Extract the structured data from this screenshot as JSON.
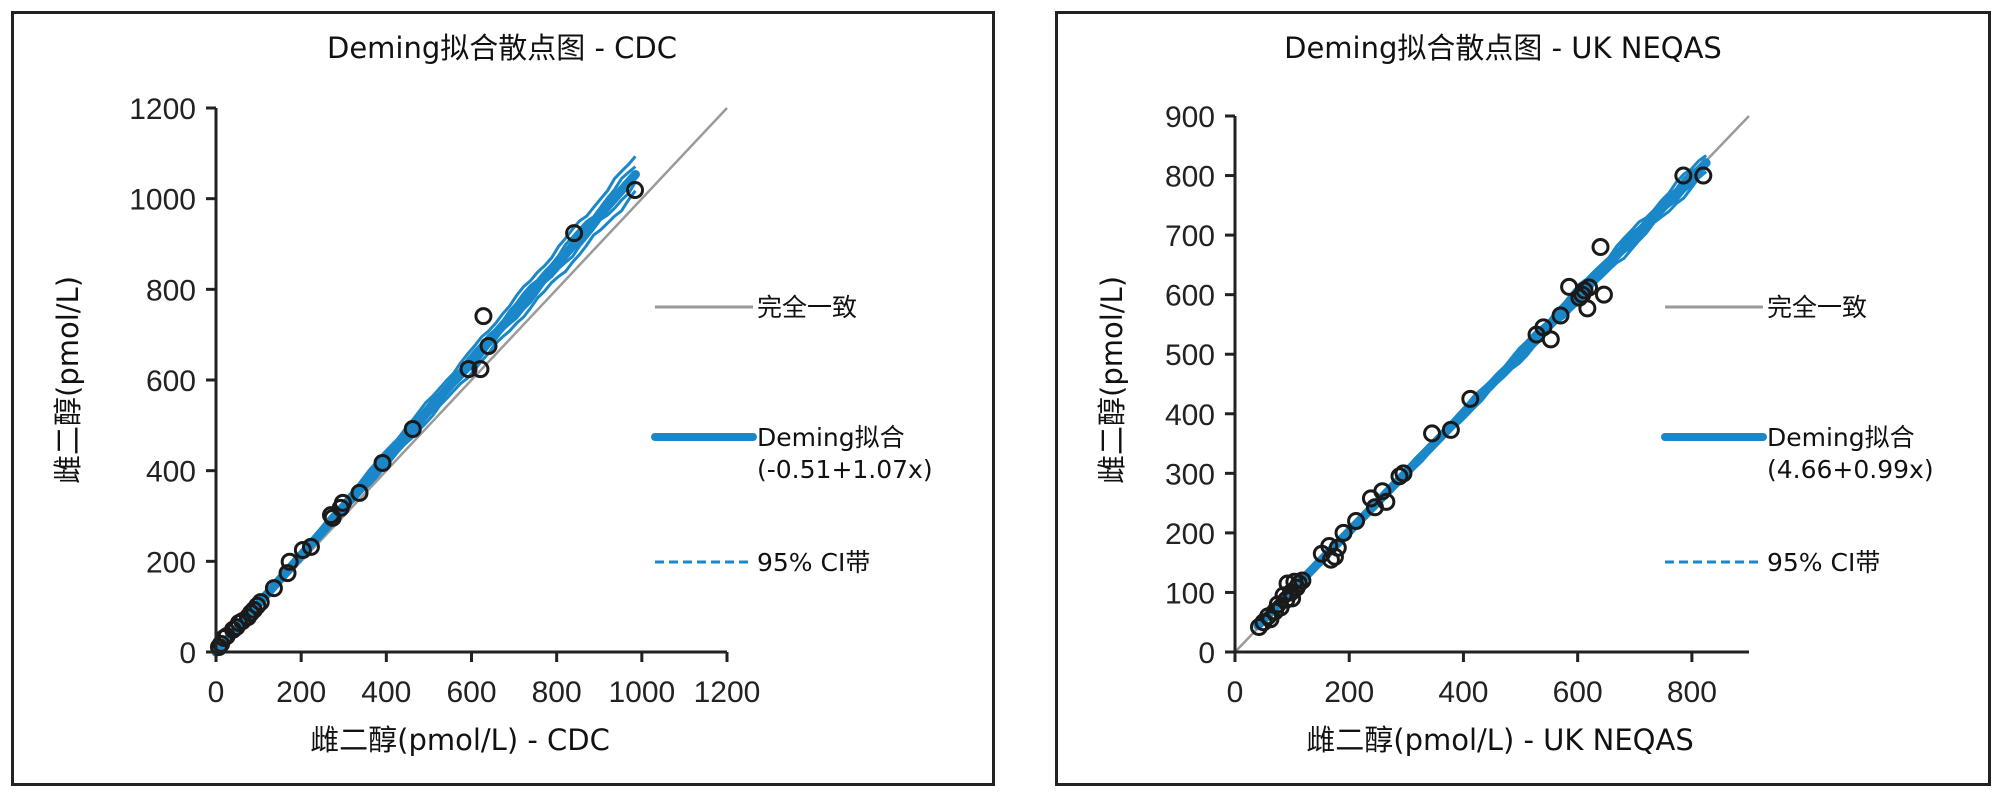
{
  "colors": {
    "identity": "#9a9a9a",
    "fit": "#1a87c9",
    "ci": "#1a87c9",
    "point_stroke": "#1a1a1a",
    "axis": "#222222"
  },
  "chart_data": [
    {
      "type": "scatter",
      "title": "Deming拟合散点图 - CDC",
      "xlabel": "雌二醇(pmol/L) - CDC",
      "ylabel": "雌二醇(pmol/L)",
      "xlim": [
        0,
        1200
      ],
      "ylim": [
        0,
        1200
      ],
      "xticks": [
        0,
        200,
        400,
        600,
        800,
        1000,
        1200
      ],
      "yticks": [
        0,
        200,
        400,
        600,
        800,
        1000,
        1200
      ],
      "grid": false,
      "legend_position": "right",
      "legend": [
        {
          "key": "identity",
          "label": "完全一致",
          "label2": ""
        },
        {
          "key": "fit",
          "label": "Deming拟合",
          "label2": "(-0.51+1.07x)"
        },
        {
          "key": "ci",
          "label": "95% CI带",
          "label2": ""
        }
      ],
      "fit": {
        "intercept": -0.51,
        "slope": 1.07,
        "x_range": [
          0,
          985
        ]
      },
      "identity_range": [
        0,
        1200
      ],
      "ci_band": {
        "lower_slope": 1.03,
        "upper_slope": 1.11,
        "x_range": [
          0,
          985
        ]
      },
      "points": [
        {
          "x": 7,
          "y": 11
        },
        {
          "x": 12,
          "y": 18
        },
        {
          "x": 19,
          "y": 31
        },
        {
          "x": 25,
          "y": 35
        },
        {
          "x": 40,
          "y": 49
        },
        {
          "x": 48,
          "y": 55
        },
        {
          "x": 54,
          "y": 64
        },
        {
          "x": 62,
          "y": 68
        },
        {
          "x": 75,
          "y": 77
        },
        {
          "x": 82,
          "y": 86
        },
        {
          "x": 89,
          "y": 93
        },
        {
          "x": 97,
          "y": 102
        },
        {
          "x": 105,
          "y": 110
        },
        {
          "x": 136,
          "y": 141
        },
        {
          "x": 168,
          "y": 174
        },
        {
          "x": 173,
          "y": 199
        },
        {
          "x": 204,
          "y": 225
        },
        {
          "x": 223,
          "y": 232
        },
        {
          "x": 270,
          "y": 302
        },
        {
          "x": 274,
          "y": 296
        },
        {
          "x": 293,
          "y": 318
        },
        {
          "x": 298,
          "y": 329
        },
        {
          "x": 337,
          "y": 351
        },
        {
          "x": 391,
          "y": 417
        },
        {
          "x": 462,
          "y": 492
        },
        {
          "x": 593,
          "y": 624
        },
        {
          "x": 621,
          "y": 624
        },
        {
          "x": 640,
          "y": 675
        },
        {
          "x": 628,
          "y": 741
        },
        {
          "x": 841,
          "y": 924
        },
        {
          "x": 984,
          "y": 1019
        }
      ]
    },
    {
      "type": "scatter",
      "title": "Deming拟合散点图 - UK NEQAS",
      "xlabel": "雌二醇(pmol/L) - UK NEQAS",
      "ylabel": "雌二醇(pmol/L)",
      "xlim": [
        0,
        900
      ],
      "ylim": [
        0,
        900
      ],
      "xticks": [
        0,
        200,
        400,
        600,
        800
      ],
      "yticks": [
        0,
        100,
        200,
        300,
        400,
        500,
        600,
        700,
        800,
        900
      ],
      "grid": false,
      "legend_position": "right",
      "legend": [
        {
          "key": "identity",
          "label": "完全一致",
          "label2": ""
        },
        {
          "key": "fit",
          "label": "Deming拟合",
          "label2": "(4.66+0.99x)"
        },
        {
          "key": "ci",
          "label": "95% CI带",
          "label2": ""
        }
      ],
      "fit": {
        "intercept": 4.66,
        "slope": 0.99,
        "x_range": [
          40,
          825
        ]
      },
      "identity_range": [
        0,
        900
      ],
      "ci_band": {
        "lower_slope": 0.97,
        "upper_slope": 1.01,
        "x_range": [
          40,
          825
        ]
      },
      "points": [
        {
          "x": 42,
          "y": 42
        },
        {
          "x": 50,
          "y": 50
        },
        {
          "x": 58,
          "y": 60
        },
        {
          "x": 62,
          "y": 55
        },
        {
          "x": 70,
          "y": 68
        },
        {
          "x": 75,
          "y": 80
        },
        {
          "x": 80,
          "y": 75
        },
        {
          "x": 85,
          "y": 95
        },
        {
          "x": 90,
          "y": 88
        },
        {
          "x": 92,
          "y": 115
        },
        {
          "x": 98,
          "y": 100
        },
        {
          "x": 100,
          "y": 90
        },
        {
          "x": 104,
          "y": 118
        },
        {
          "x": 108,
          "y": 108
        },
        {
          "x": 112,
          "y": 115
        },
        {
          "x": 118,
          "y": 120
        },
        {
          "x": 152,
          "y": 165
        },
        {
          "x": 165,
          "y": 178
        },
        {
          "x": 168,
          "y": 155
        },
        {
          "x": 175,
          "y": 160
        },
        {
          "x": 180,
          "y": 175
        },
        {
          "x": 190,
          "y": 200
        },
        {
          "x": 212,
          "y": 220
        },
        {
          "x": 238,
          "y": 258
        },
        {
          "x": 245,
          "y": 243
        },
        {
          "x": 258,
          "y": 270
        },
        {
          "x": 265,
          "y": 252
        },
        {
          "x": 288,
          "y": 295
        },
        {
          "x": 295,
          "y": 300
        },
        {
          "x": 345,
          "y": 367
        },
        {
          "x": 378,
          "y": 373
        },
        {
          "x": 412,
          "y": 425
        },
        {
          "x": 528,
          "y": 533
        },
        {
          "x": 540,
          "y": 545
        },
        {
          "x": 553,
          "y": 525
        },
        {
          "x": 570,
          "y": 565
        },
        {
          "x": 585,
          "y": 613
        },
        {
          "x": 603,
          "y": 595
        },
        {
          "x": 608,
          "y": 600
        },
        {
          "x": 612,
          "y": 607
        },
        {
          "x": 617,
          "y": 577
        },
        {
          "x": 620,
          "y": 612
        },
        {
          "x": 640,
          "y": 680
        },
        {
          "x": 646,
          "y": 600
        },
        {
          "x": 785,
          "y": 800
        },
        {
          "x": 820,
          "y": 800
        }
      ]
    }
  ]
}
